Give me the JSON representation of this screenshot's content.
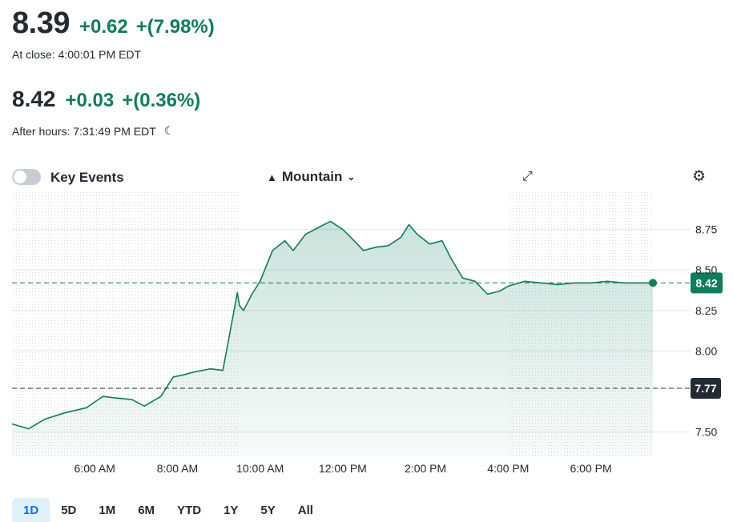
{
  "quote": {
    "price": "8.39",
    "change": "+0.62",
    "change_pct": "+(7.98%)",
    "close_label": "At close: 4:00:01 PM EDT",
    "ah_price": "8.42",
    "ah_change": "+0.03",
    "ah_change_pct": "+(0.36%)",
    "ah_label": "After hours: 7:31:49 PM EDT"
  },
  "toolbar": {
    "key_events_label": "Key Events",
    "chart_mode_label": "Mountain"
  },
  "ranges": [
    "1D",
    "5D",
    "1M",
    "6M",
    "YTD",
    "1Y",
    "5Y",
    "All"
  ],
  "active_range": "1D",
  "colors": {
    "up": "#0d7d5c",
    "line": "#0d7d5c",
    "prev_close_badge": "#232a31",
    "active_tab_bg": "#e0f0fa"
  },
  "chart_data": {
    "type": "area",
    "x_ticks": [
      "6:00 AM",
      "8:00 AM",
      "10:00 AM",
      "12:00 PM",
      "2:00 PM",
      "4:00 PM",
      "6:00 PM"
    ],
    "y_ticks": [
      "8.75",
      "8.50",
      "8.25",
      "8.00",
      "7.50"
    ],
    "ylim": [
      7.35,
      8.98
    ],
    "current_label": "8.42",
    "prev_close_label": "7.77",
    "current_value": 8.42,
    "prev_close_value": 7.77,
    "series": [
      {
        "values_hours": [
          4.0,
          4.4,
          4.8,
          5.3,
          5.8,
          6.2,
          6.5,
          6.9,
          7.2,
          7.6,
          7.9,
          8.1,
          8.4,
          8.8,
          9.1,
          9.45,
          9.5,
          9.6,
          9.8,
          10.0,
          10.3,
          10.6,
          10.8,
          11.1,
          11.4,
          11.7,
          12.0,
          12.2,
          12.5,
          12.8,
          13.1,
          13.4,
          13.6,
          13.8,
          14.1,
          14.4,
          14.6,
          14.9,
          15.2,
          15.5,
          15.8,
          16.0,
          16.4,
          16.8,
          17.2,
          17.6,
          18.0,
          18.4,
          18.8,
          19.2,
          19.5
        ],
        "values": [
          7.55,
          7.52,
          7.58,
          7.62,
          7.65,
          7.72,
          7.71,
          7.7,
          7.66,
          7.72,
          7.84,
          7.85,
          7.87,
          7.89,
          7.88,
          8.36,
          8.28,
          8.25,
          8.35,
          8.43,
          8.62,
          8.68,
          8.62,
          8.72,
          8.76,
          8.8,
          8.75,
          8.7,
          8.62,
          8.64,
          8.65,
          8.7,
          8.78,
          8.72,
          8.66,
          8.68,
          8.58,
          8.45,
          8.43,
          8.35,
          8.37,
          8.4,
          8.43,
          8.42,
          8.41,
          8.42,
          8.42,
          8.43,
          8.42,
          8.42,
          8.42
        ]
      }
    ]
  }
}
